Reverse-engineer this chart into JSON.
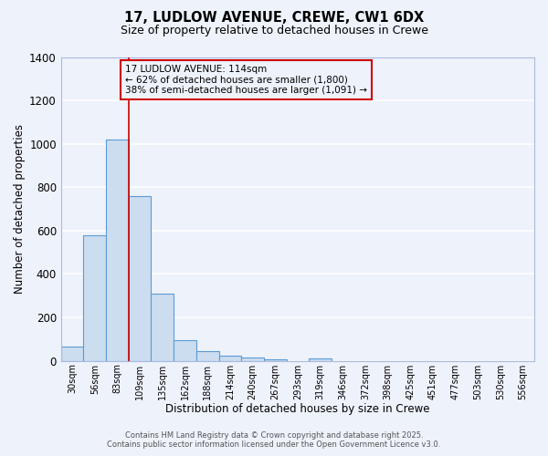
{
  "title_line1": "17, LUDLOW AVENUE, CREWE, CW1 6DX",
  "title_line2": "Size of property relative to detached houses in Crewe",
  "xlabel": "Distribution of detached houses by size in Crewe",
  "ylabel": "Number of detached properties",
  "bar_labels": [
    "30sqm",
    "56sqm",
    "83sqm",
    "109sqm",
    "135sqm",
    "162sqm",
    "188sqm",
    "214sqm",
    "240sqm",
    "267sqm",
    "293sqm",
    "319sqm",
    "346sqm",
    "372sqm",
    "398sqm",
    "425sqm",
    "451sqm",
    "477sqm",
    "503sqm",
    "530sqm",
    "556sqm"
  ],
  "bar_values": [
    65,
    580,
    1020,
    760,
    310,
    95,
    45,
    22,
    14,
    8,
    0,
    10,
    0,
    0,
    0,
    0,
    0,
    0,
    0,
    0,
    0
  ],
  "bar_color": "#ccddf0",
  "bar_edge_color": "#5b9bd5",
  "annotation_title": "17 LUDLOW AVENUE: 114sqm",
  "annotation_line2": "← 62% of detached houses are smaller (1,800)",
  "annotation_line3": "38% of semi-detached houses are larger (1,091) →",
  "vline_x": 2.5,
  "vline_color": "#cc0000",
  "annotation_box_color": "#cc0000",
  "ylim": [
    0,
    1400
  ],
  "yticks": [
    0,
    200,
    400,
    600,
    800,
    1000,
    1200,
    1400
  ],
  "bg_color": "#eef2fb",
  "grid_color": "#ffffff",
  "footer_line1": "Contains HM Land Registry data © Crown copyright and database right 2025.",
  "footer_line2": "Contains public sector information licensed under the Open Government Licence v3.0."
}
